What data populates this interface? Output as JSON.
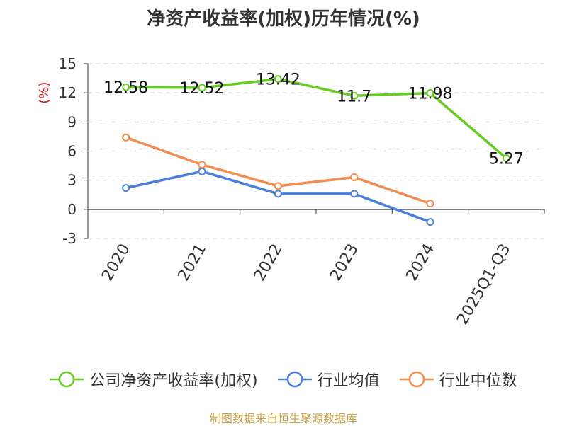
{
  "chart_data": {
    "type": "line",
    "title": "净资产收益率(加权)历年情况(%)",
    "ylabel": "(%)",
    "xlabel": "",
    "ylim": [
      -3,
      15
    ],
    "yticks": [
      15,
      12,
      9,
      6,
      3,
      0,
      -3
    ],
    "categories": [
      "2020",
      "2021",
      "2022",
      "2023",
      "2024",
      "2025Q1-Q3"
    ],
    "grid": true,
    "legend_position": "bottom",
    "series": [
      {
        "name": "公司净资产收益率(加权)",
        "color": "#66cc22",
        "values": [
          12.58,
          12.52,
          13.42,
          11.7,
          11.98,
          5.27
        ],
        "labels": [
          "12.58",
          "12.52",
          "13.42",
          "11.7",
          "11.98",
          "5.27"
        ]
      },
      {
        "name": "行业均值",
        "color": "#4a7fdb",
        "values": [
          2.2,
          3.9,
          1.6,
          1.6,
          -1.3,
          null
        ]
      },
      {
        "name": "行业中位数",
        "color": "#f28c50",
        "values": [
          7.4,
          4.6,
          2.4,
          3.3,
          0.6,
          null
        ]
      }
    ]
  },
  "footer": {
    "source": "制图数据来自恒生聚源数据库"
  }
}
